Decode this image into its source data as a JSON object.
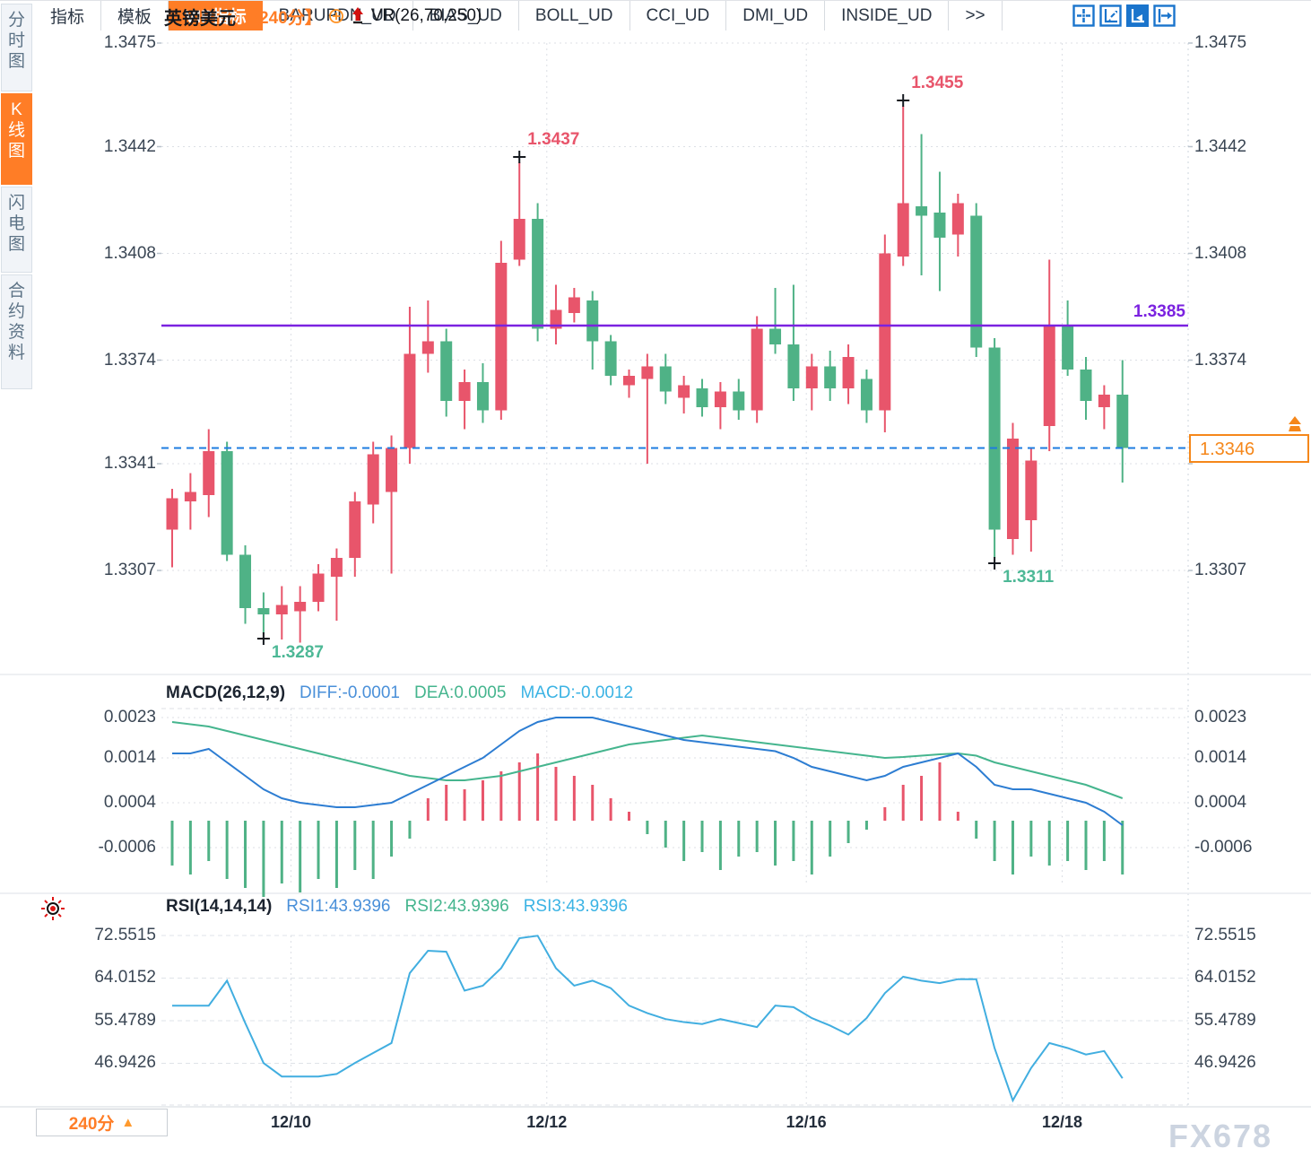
{
  "header": {
    "symbol": "英镑美元",
    "interval": "【240分】",
    "indicator": "VR(26,70,250)"
  },
  "toolbar": {
    "icons": [
      {
        "name": "crosshair-pan-icon",
        "active": false
      },
      {
        "name": "axis-zoom-icon",
        "active": false
      },
      {
        "name": "axis-pointer-icon",
        "active": true
      },
      {
        "name": "panel-collapse-icon",
        "active": false
      }
    ]
  },
  "sidebar": {
    "items": [
      {
        "label": "分时图",
        "active": false
      },
      {
        "label": "K线图",
        "active": true
      },
      {
        "label": "闪电图",
        "active": false
      },
      {
        "label": "合约资料",
        "active": false
      }
    ]
  },
  "main_chart": {
    "left_ticks": [
      "1.3475",
      "1.3442",
      "1.3408",
      "1.3374",
      "1.3341",
      "1.3307"
    ],
    "left_tick_values": [
      1.3475,
      1.3442,
      1.3408,
      1.3374,
      1.3341,
      1.3307
    ],
    "right_ticks": [
      "1.3475",
      "1.3442",
      "1.3408",
      "1.3374",
      "1.3307"
    ],
    "right_tick_values": [
      1.3475,
      1.3442,
      1.3408,
      1.3374,
      1.3307
    ],
    "hline_label": "1.3385",
    "current_price_label": "1.3346",
    "annotations": [
      {
        "text": "1.3437",
        "price": 1.3437,
        "candle_index": 19,
        "kind": "high",
        "color": "#e8556b"
      },
      {
        "text": "1.3455",
        "price": 1.3455,
        "candle_index": 40,
        "kind": "high",
        "color": "#e8556b"
      },
      {
        "text": "1.3287",
        "price": 1.3287,
        "candle_index": 5,
        "kind": "low",
        "color": "#4db896"
      },
      {
        "text": "1.3311",
        "price": 1.3311,
        "candle_index": 45,
        "kind": "low",
        "color": "#4db896"
      }
    ]
  },
  "macd_panel": {
    "title": "MACD(26,12,9)",
    "diff_label": "DIFF:-0.0001",
    "dea_label": "DEA:0.0005",
    "macd_label": "MACD:-0.0012",
    "ticks": [
      "0.0023",
      "0.0014",
      "0.0004",
      "-0.0006"
    ],
    "tick_values": [
      0.0023,
      0.0014,
      0.0004,
      -0.0006
    ]
  },
  "rsi_panel": {
    "title": "RSI(14,14,14)",
    "rsi1_label": "RSI1:43.9396",
    "rsi2_label": "RSI2:43.9396",
    "rsi3_label": "RSI3:43.9396",
    "ticks": [
      "72.5515",
      "64.0152",
      "55.4789",
      "46.9426"
    ],
    "tick_values": [
      72.5515,
      64.0152,
      55.4789,
      46.9426
    ]
  },
  "footer": {
    "interval_label": "240分",
    "tabs": [
      {
        "label": "指标",
        "active": false
      },
      {
        "label": "模板",
        "active": false
      },
      {
        "label": "VIP指标",
        "active": true
      },
      {
        "label": "BARUPDN_UD",
        "active": false
      },
      {
        "label": "BIAS_UD",
        "active": false
      },
      {
        "label": "BOLL_UD",
        "active": false
      },
      {
        "label": "CCI_UD",
        "active": false
      },
      {
        "label": "DMI_UD",
        "active": false
      },
      {
        "label": "INSIDE_UD",
        "active": false
      },
      {
        "label": ">>",
        "active": false
      }
    ]
  },
  "watermark": "FX678",
  "colors": {
    "up": "#e8556b",
    "down": "#4fb286",
    "hline": "#7b22e0",
    "current_line": "#1e7ce0",
    "diff": "#2d7dd2",
    "dea": "#45b58e",
    "rsi": "#41aee0",
    "accent_orange": "#ff7d26",
    "price_box_orange": "#f5871a",
    "label_blue": "#4a90d9",
    "label_green": "#45b58e",
    "label_cyan": "#3bb3e4",
    "grid": "#dcdfe5",
    "tick_text": "#3a4654"
  },
  "chart_data": {
    "type": "candlestick",
    "title": "英镑美元 240分 K线图",
    "interval": "240min",
    "price_axis_ticks": [
      1.3475,
      1.3442,
      1.3408,
      1.3374,
      1.3341,
      1.3307
    ],
    "date_ticks": [
      {
        "label": "12/10",
        "candle_index": 6.5
      },
      {
        "label": "12/12",
        "candle_index": 20.5
      },
      {
        "label": "12/16",
        "candle_index": 34.7
      },
      {
        "label": "12/18",
        "candle_index": 48.7
      }
    ],
    "horizontal_line_price": 1.3385,
    "last_price": 1.3346,
    "high_annotations": [
      1.3437,
      1.3455
    ],
    "low_annotations": [
      1.3287,
      1.3311
    ],
    "candles": [
      [
        1.332,
        1.3333,
        1.3308,
        1.333
      ],
      [
        1.3329,
        1.3338,
        1.332,
        1.3332
      ],
      [
        1.3331,
        1.3352,
        1.3324,
        1.3345
      ],
      [
        1.3345,
        1.3348,
        1.331,
        1.3312
      ],
      [
        1.3312,
        1.3315,
        1.329,
        1.3295
      ],
      [
        1.3295,
        1.33,
        1.3287,
        1.3293
      ],
      [
        1.3293,
        1.3302,
        1.3285,
        1.3296
      ],
      [
        1.3294,
        1.3302,
        1.3284,
        1.3297
      ],
      [
        1.3297,
        1.3309,
        1.3294,
        1.3306
      ],
      [
        1.3305,
        1.3314,
        1.3291,
        1.3311
      ],
      [
        1.3311,
        1.3332,
        1.3305,
        1.3329
      ],
      [
        1.3328,
        1.3348,
        1.3322,
        1.3344
      ],
      [
        1.3332,
        1.335,
        1.3306,
        1.3346
      ],
      [
        1.3346,
        1.3391,
        1.3341,
        1.3376
      ],
      [
        1.3376,
        1.3393,
        1.337,
        1.338
      ],
      [
        1.338,
        1.3384,
        1.3356,
        1.3361
      ],
      [
        1.3361,
        1.3371,
        1.3352,
        1.3367
      ],
      [
        1.3367,
        1.3373,
        1.3354,
        1.3358
      ],
      [
        1.3358,
        1.3412,
        1.3355,
        1.3405
      ],
      [
        1.3406,
        1.3437,
        1.3404,
        1.3419
      ],
      [
        1.3419,
        1.3424,
        1.338,
        1.3384
      ],
      [
        1.3384,
        1.3398,
        1.3379,
        1.339
      ],
      [
        1.3389,
        1.3397,
        1.3386,
        1.3394
      ],
      [
        1.3393,
        1.3396,
        1.3371,
        1.338
      ],
      [
        1.338,
        1.3382,
        1.3366,
        1.3369
      ],
      [
        1.3366,
        1.3371,
        1.3362,
        1.3369
      ],
      [
        1.3368,
        1.3376,
        1.3341,
        1.3372
      ],
      [
        1.3372,
        1.3376,
        1.336,
        1.3364
      ],
      [
        1.3362,
        1.3369,
        1.3357,
        1.3366
      ],
      [
        1.3365,
        1.3368,
        1.3356,
        1.3359
      ],
      [
        1.3359,
        1.3367,
        1.3352,
        1.3364
      ],
      [
        1.3364,
        1.3368,
        1.3355,
        1.3358
      ],
      [
        1.3358,
        1.3388,
        1.3354,
        1.3384
      ],
      [
        1.3384,
        1.3397,
        1.3376,
        1.3379
      ],
      [
        1.3379,
        1.3398,
        1.3361,
        1.3365
      ],
      [
        1.3365,
        1.3376,
        1.3358,
        1.3372
      ],
      [
        1.3372,
        1.3377,
        1.3361,
        1.3365
      ],
      [
        1.3365,
        1.3379,
        1.336,
        1.3375
      ],
      [
        1.3368,
        1.3371,
        1.3354,
        1.3358
      ],
      [
        1.3358,
        1.3414,
        1.3351,
        1.3408
      ],
      [
        1.3407,
        1.3455,
        1.3404,
        1.3424
      ],
      [
        1.3423,
        1.3446,
        1.3401,
        1.342
      ],
      [
        1.3421,
        1.3434,
        1.3396,
        1.3413
      ],
      [
        1.3414,
        1.3427,
        1.3407,
        1.3424
      ],
      [
        1.342,
        1.3424,
        1.3375,
        1.3378
      ],
      [
        1.3378,
        1.3381,
        1.3311,
        1.332
      ],
      [
        1.3317,
        1.3354,
        1.3312,
        1.3349
      ],
      [
        1.3323,
        1.3346,
        1.3313,
        1.3342
      ],
      [
        1.3353,
        1.3406,
        1.3345,
        1.3385
      ],
      [
        1.3385,
        1.3393,
        1.3369,
        1.3371
      ],
      [
        1.3371,
        1.3375,
        1.3355,
        1.3361
      ],
      [
        1.3359,
        1.3366,
        1.3352,
        1.3363
      ],
      [
        1.3363,
        1.3374,
        1.3335,
        1.3346
      ]
    ],
    "macd": {
      "params": "26,12,9",
      "diff_current": -0.0001,
      "dea_current": 0.0005,
      "macd_current": -0.0012,
      "axis": [
        0.0023,
        0.0014,
        0.0004,
        -0.0006
      ],
      "diff": [
        0.0015,
        0.0015,
        0.0016,
        0.0013,
        0.001,
        0.0007,
        0.0005,
        0.0004,
        0.00035,
        0.0003,
        0.0003,
        0.00035,
        0.0004,
        0.0006,
        0.0008,
        0.001,
        0.0012,
        0.0014,
        0.0017,
        0.002,
        0.0022,
        0.0023,
        0.0023,
        0.0023,
        0.0022,
        0.0021,
        0.002,
        0.0019,
        0.0018,
        0.00175,
        0.0017,
        0.00165,
        0.0016,
        0.00155,
        0.0014,
        0.0012,
        0.0011,
        0.001,
        0.0009,
        0.001,
        0.0012,
        0.0013,
        0.0014,
        0.0015,
        0.0012,
        0.0008,
        0.0007,
        0.0007,
        0.0006,
        0.0005,
        0.0004,
        0.0002,
        -0.0001
      ],
      "dea": [
        0.0022,
        0.00215,
        0.0021,
        0.002,
        0.0019,
        0.0018,
        0.0017,
        0.0016,
        0.0015,
        0.0014,
        0.0013,
        0.0012,
        0.0011,
        0.001,
        0.00095,
        0.0009,
        0.0009,
        0.00095,
        0.001,
        0.0011,
        0.0012,
        0.0013,
        0.0014,
        0.0015,
        0.0016,
        0.0017,
        0.00175,
        0.0018,
        0.00185,
        0.0019,
        0.00185,
        0.0018,
        0.00175,
        0.0017,
        0.00165,
        0.0016,
        0.00155,
        0.0015,
        0.00145,
        0.0014,
        0.00142,
        0.00145,
        0.00148,
        0.0015,
        0.00145,
        0.0013,
        0.0012,
        0.0011,
        0.001,
        0.0009,
        0.0008,
        0.00065,
        0.0005
      ],
      "histogram": [
        -0.001,
        -0.0012,
        -0.0009,
        -0.0013,
        -0.0015,
        -0.0017,
        -0.0014,
        -0.0016,
        -0.0013,
        -0.0015,
        -0.0011,
        -0.0013,
        -0.0008,
        -0.0004,
        0.0005,
        0.0008,
        0.0007,
        0.0009,
        0.0011,
        0.0013,
        0.0015,
        0.0012,
        0.001,
        0.0008,
        0.0005,
        0.0002,
        -0.0003,
        -0.0006,
        -0.0009,
        -0.0007,
        -0.0011,
        -0.0008,
        -0.0007,
        -0.001,
        -0.0009,
        -0.0012,
        -0.0008,
        -0.0005,
        -0.0002,
        0.0003,
        0.0008,
        0.001,
        0.0013,
        0.0002,
        -0.0004,
        -0.0009,
        -0.0012,
        -0.0008,
        -0.001,
        -0.0009,
        -0.0011,
        -0.0009,
        -0.0012
      ]
    },
    "rsi": {
      "params": "14,14,14",
      "rsi1_current": 43.9396,
      "rsi2_current": 43.9396,
      "rsi3_current": 43.9396,
      "axis": [
        72.5515,
        64.0152,
        55.4789,
        46.9426
      ],
      "values": [
        58.5,
        58.5,
        58.5,
        63.5,
        55,
        47,
        44.3,
        44.3,
        44.3,
        44.8,
        47,
        49,
        51,
        65,
        69.5,
        69.3,
        61.5,
        62.5,
        66,
        72,
        72.5,
        66,
        62.5,
        63.5,
        62,
        58.5,
        57,
        55.8,
        55.2,
        54.8,
        55.8,
        55,
        54.2,
        58.5,
        58.2,
        56,
        54.5,
        52.7,
        56,
        61,
        64.3,
        63.5,
        63,
        63.8,
        63.8,
        50,
        39.5,
        46,
        51,
        50,
        48.7,
        49.4,
        43.94
      ]
    }
  }
}
